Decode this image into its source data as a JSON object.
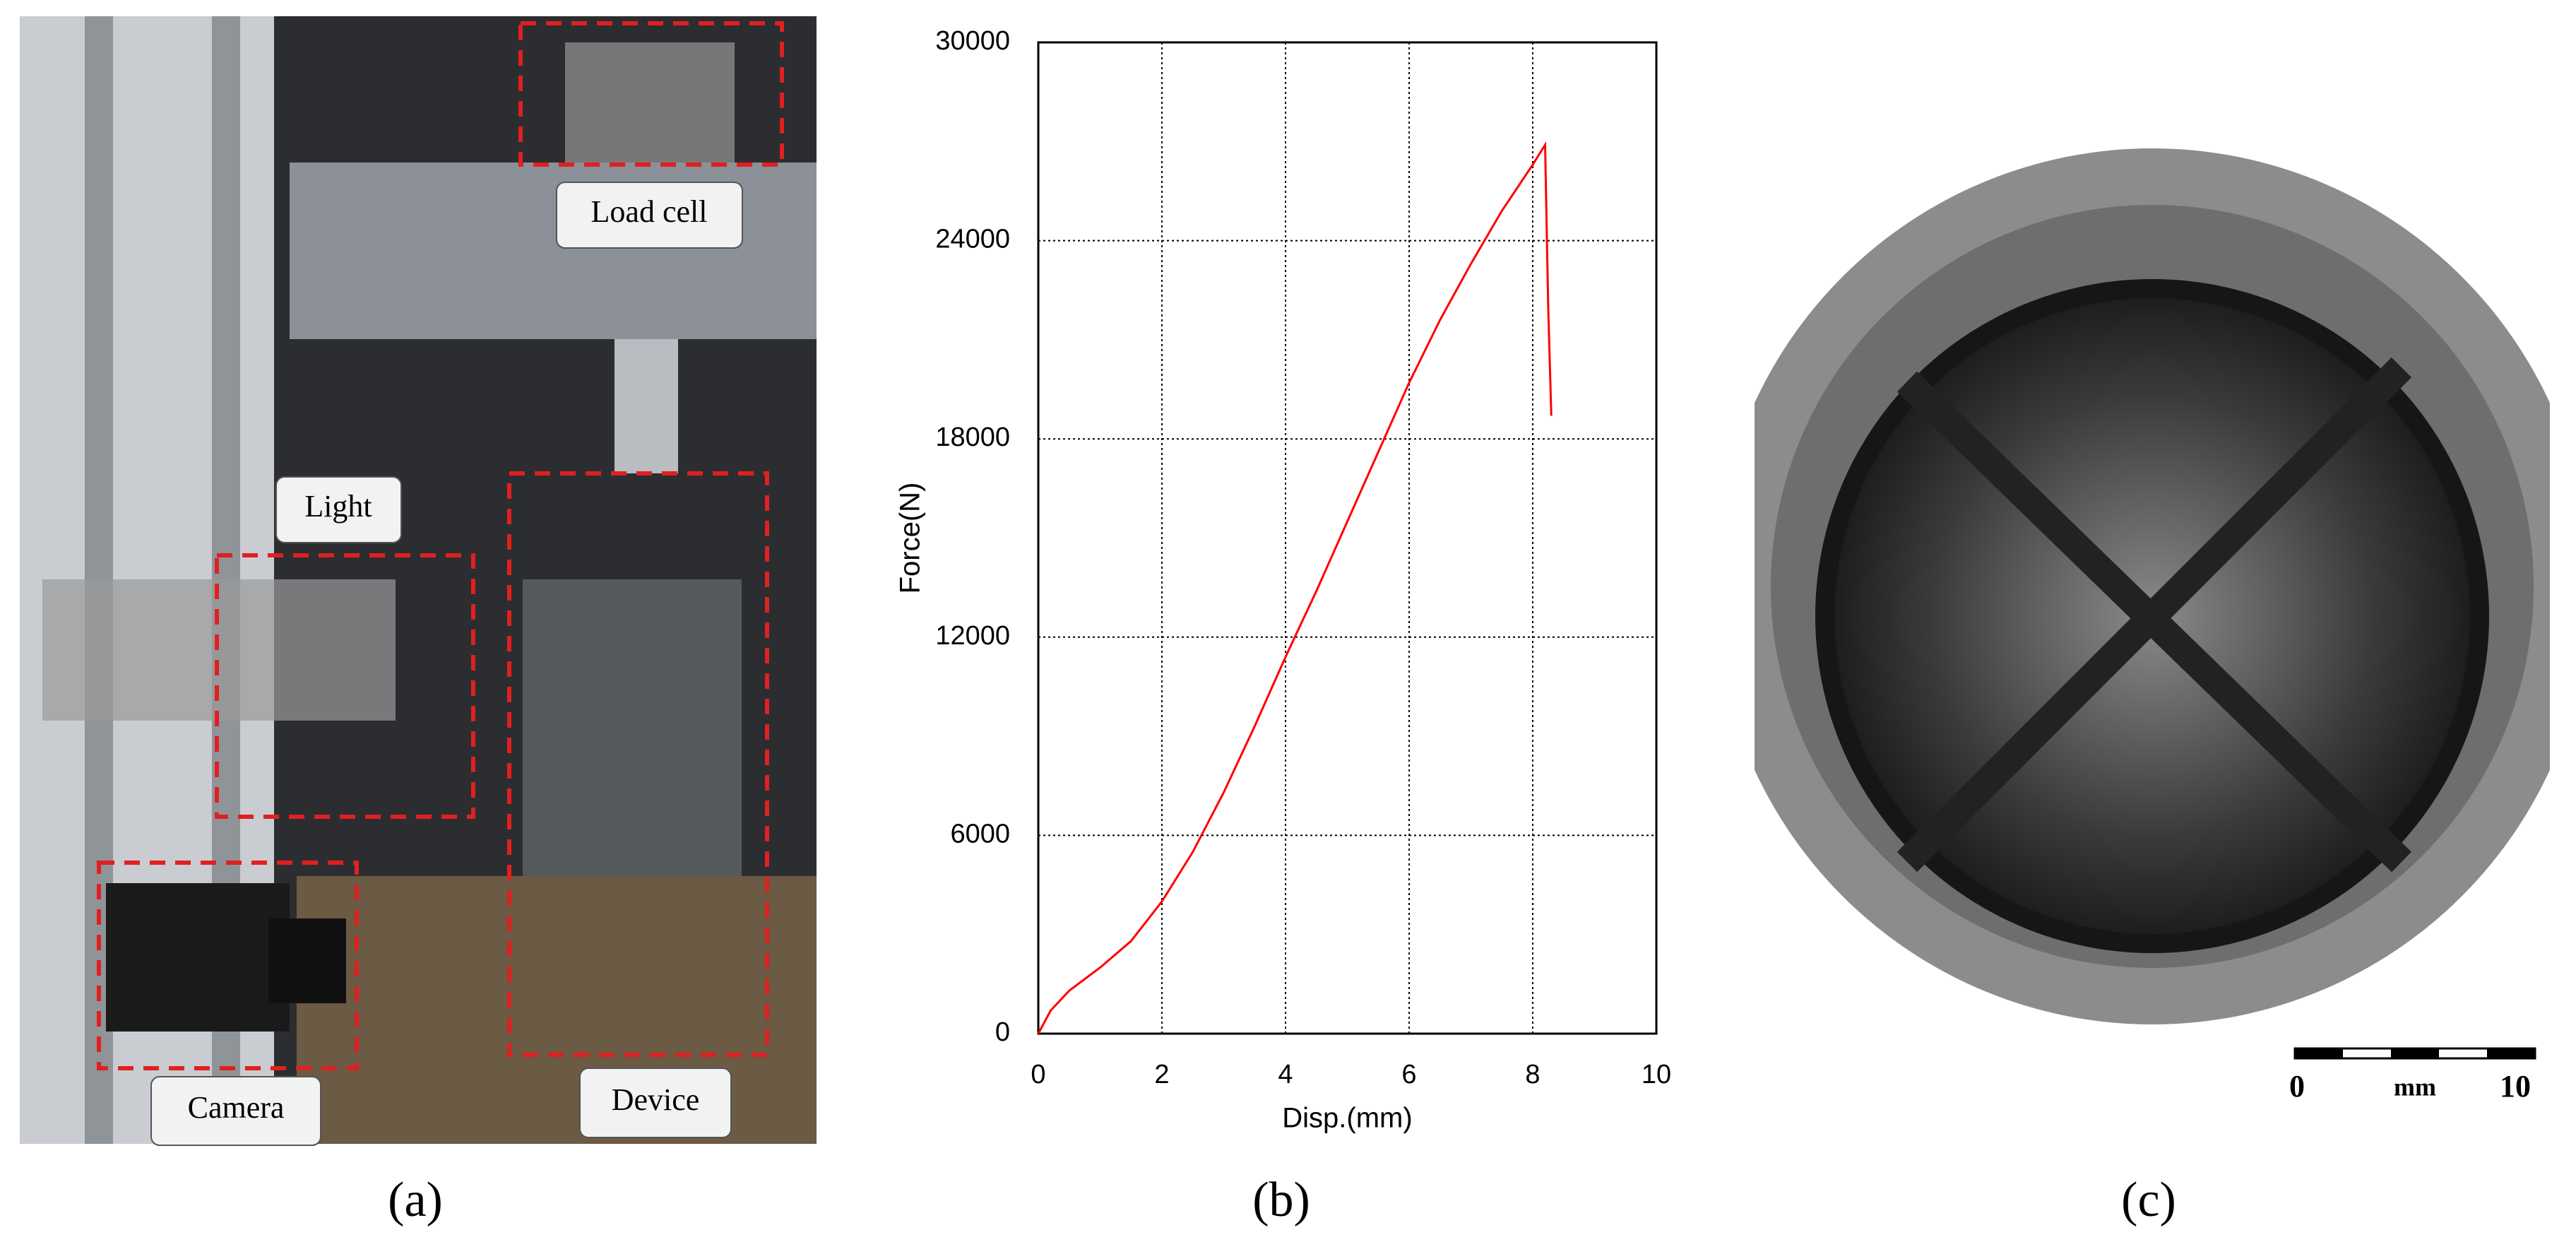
{
  "figure": {
    "panels": [
      {
        "caption": "(a)",
        "labels": [
          "Load cell",
          "Light",
          "Device",
          "Camera"
        ]
      },
      {
        "caption": "(b)"
      },
      {
        "caption": "(c)",
        "scale_bar": {
          "start": "0",
          "unit": "mm",
          "end": "10"
        }
      }
    ]
  },
  "chart_data": {
    "type": "line",
    "x_label": "Disp.(mm)",
    "y_label": "Force(N)",
    "x": [
      0,
      0.2,
      0.5,
      1,
      1.5,
      2,
      2.5,
      3,
      3.5,
      4,
      4.5,
      5,
      5.5,
      6,
      6.5,
      7,
      7.5,
      8,
      8.2,
      8.25,
      8.3
    ],
    "values": [
      0,
      700,
      1300,
      2000,
      2800,
      4000,
      5500,
      7300,
      9300,
      11400,
      13400,
      15500,
      17600,
      19700,
      21600,
      23300,
      24900,
      26300,
      26900,
      22000,
      18700
    ],
    "color": "#ff0000",
    "xlim": [
      0,
      10
    ],
    "xticks": [
      0,
      2,
      4,
      6,
      8,
      10
    ],
    "ylim": [
      0,
      30000
    ],
    "yticks": [
      0,
      6000,
      12000,
      18000,
      24000,
      30000
    ],
    "grid": true
  }
}
